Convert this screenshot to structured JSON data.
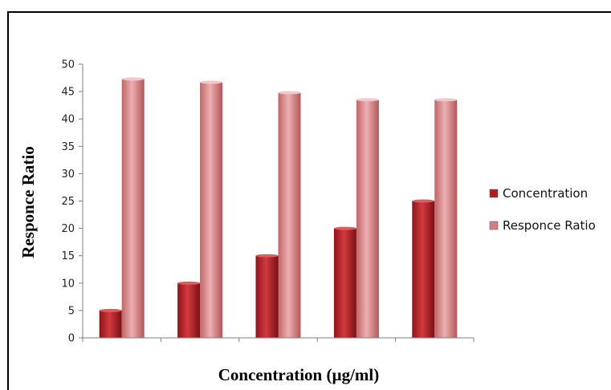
{
  "chart_data": {
    "type": "bar",
    "title": "",
    "xlabel": "Concentration (µg/ml)",
    "ylabel": "Responce Ratio",
    "categories": [
      "",
      "",
      "",
      "",
      ""
    ],
    "series": [
      {
        "name": "Concentration",
        "values": [
          5,
          10,
          15,
          20,
          25
        ],
        "color": "#c0282d"
      },
      {
        "name": "Responce Ratio",
        "values": [
          47.3,
          46.7,
          44.8,
          43.5,
          43.5
        ],
        "color": "#d98a8c"
      }
    ],
    "ylim": [
      0,
      50
    ],
    "yticks": [
      "0",
      "5",
      "10",
      "15",
      "20",
      "25",
      "30",
      "35",
      "40",
      "45",
      "50"
    ],
    "grid": false,
    "legend": "right"
  }
}
